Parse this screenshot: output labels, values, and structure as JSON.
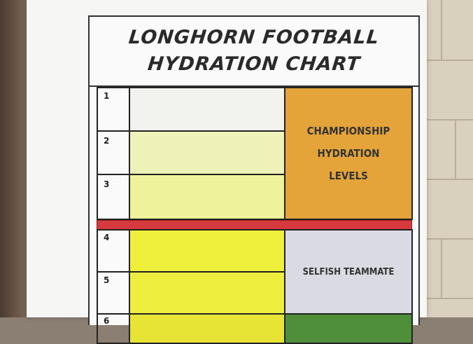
{
  "chart": {
    "title_line1": "LONGHORN FOOTBALL",
    "title_line2": "HYDRATION CHART"
  },
  "rows": [
    {
      "number": "1",
      "color": "#f2f2ef"
    },
    {
      "number": "2",
      "color": "#eef2b8"
    },
    {
      "number": "3",
      "color": "#eef29a"
    },
    {
      "number": "4",
      "color": "#eef03c"
    },
    {
      "number": "5",
      "color": "#eeee3e"
    },
    {
      "number": "6",
      "color": "#e8e436"
    }
  ],
  "zones": {
    "championship": {
      "line1": "CHAMPIONSHIP",
      "line2": "HYDRATION",
      "line3": "LEVELS",
      "color": "#e4a43a"
    },
    "selfish": {
      "label": "SELFISH TEAMMATE",
      "color": "#dadbe2"
    }
  },
  "separator_color": "#d63a3e"
}
